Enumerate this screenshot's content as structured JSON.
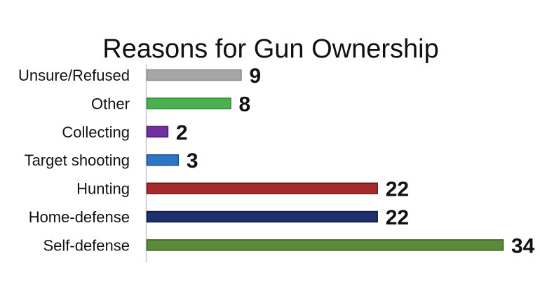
{
  "chart_data": {
    "type": "bar",
    "orientation": "horizontal",
    "title": "Reasons for Gun Ownership",
    "categories": [
      "Unsure/Refused",
      "Other",
      "Collecting",
      "Target shooting",
      "Hunting",
      "Home-defense",
      "Self-defense"
    ],
    "values": [
      9,
      8,
      2,
      3,
      22,
      22,
      34
    ],
    "colors": [
      "#a6a6a6",
      "#4caf50",
      "#7030a0",
      "#2e75c8",
      "#a52a2a",
      "#1f2f6b",
      "#5a8a3a"
    ],
    "border_colors": [
      "#8a8a8a",
      "#2f8a35",
      "#4b1a75",
      "#1a4f8f",
      "#701818",
      "#0d1a45",
      "#3b5f22"
    ],
    "xlim": [
      0,
      34
    ],
    "data_labels": true,
    "grid": false,
    "legend": "none"
  }
}
